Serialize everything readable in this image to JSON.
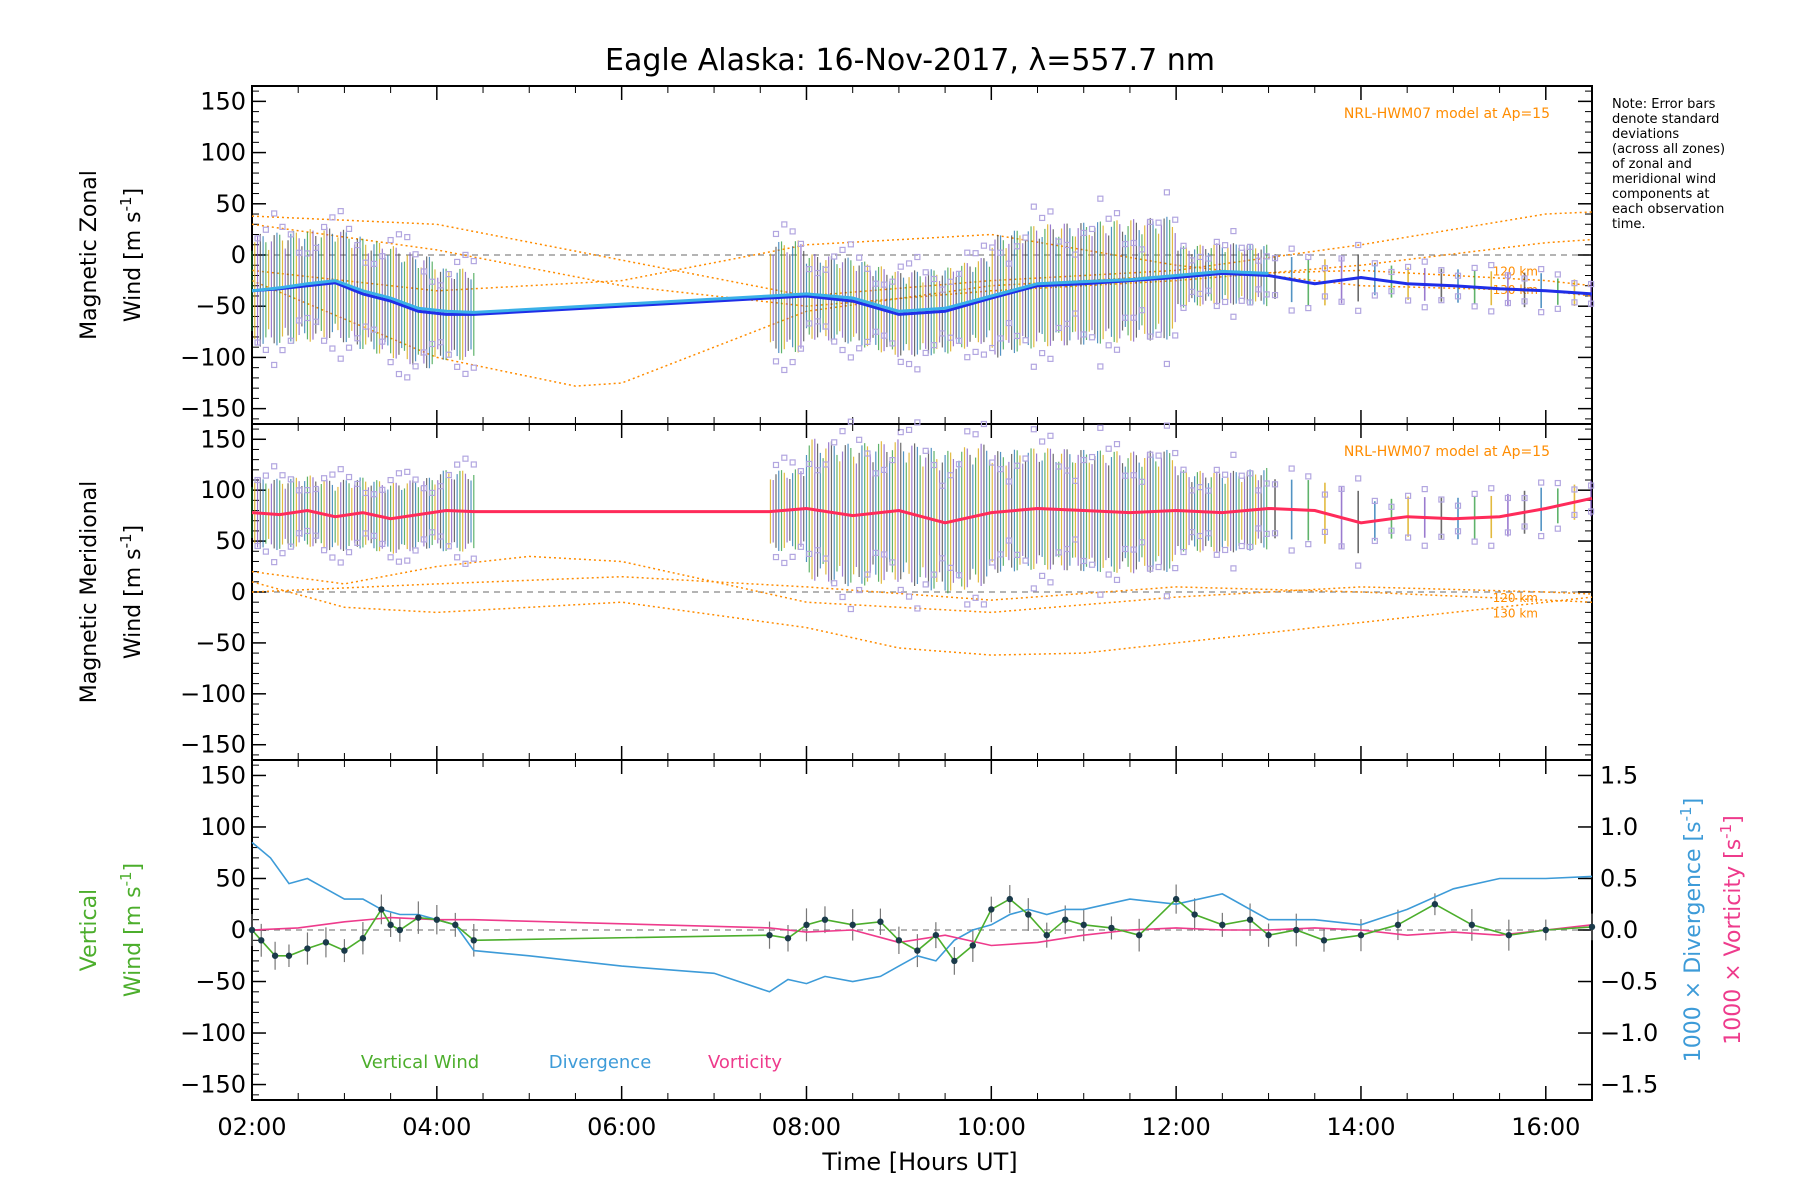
{
  "chart_data": {
    "type": "line",
    "title": "Eagle Alaska: 16-Nov-2017, λ=557.7 nm",
    "xlabel": "Time [Hours UT]",
    "x_ticks": [
      "02:00",
      "04:00",
      "06:00",
      "08:00",
      "10:00",
      "12:00",
      "14:00",
      "16:00"
    ],
    "xlim": [
      2.0,
      16.5
    ],
    "note": [
      "Note: Error bars",
      "denote standard",
      "deviations",
      "(across all zones)",
      "of zonal and",
      "meridional wind",
      "components at",
      "each observation",
      "time."
    ],
    "colors": {
      "zonal": "#1f2ee8",
      "zonal_mean": "#3ab0e8",
      "meridional": "#ff2b5a",
      "model": "#ff8c00",
      "zone_points": "#b2a6e0",
      "vertical": "#4cae2c",
      "divergence": "#3d9bd8",
      "vorticity": "#ee3b8c",
      "vertical_points": "#1a3a4a"
    },
    "panels": [
      {
        "id": "zonal",
        "ylabel_line1": "Magnetic Zonal",
        "ylabel_line2": "Wind [m s",
        "ylabel_sup": "-1",
        "ylabel_close": "]",
        "ylim": [
          -165,
          165
        ],
        "y_ticks": [
          150,
          100,
          50,
          0,
          -50,
          -100,
          -150
        ],
        "model_label": "NRL-HWM07 model at Ap=15",
        "model_alt_labels": [
          "120 km",
          "130 km"
        ],
        "series": [
          {
            "name": "",
            "x": [
              2.0,
              2.3,
              2.6,
              2.9,
              3.2,
              3.5,
              3.8,
              4.1,
              4.4,
              7.6,
              8.0,
              8.5,
              9.0,
              9.5,
              10.0,
              10.5,
              11.0,
              11.5,
              12.0,
              12.5,
              13.0,
              13.5,
              14.0,
              14.5,
              15.0,
              15.5,
              16.0,
              16.5
            ],
            "y": [
              -35,
              -33,
              -30,
              -27,
              -38,
              -45,
              -55,
              -58,
              -58,
              -42,
              -40,
              -45,
              -58,
              -55,
              -42,
              -30,
              -28,
              -25,
              -22,
              -18,
              -20,
              -28,
              -22,
              -28,
              -30,
              -33,
              -35,
              -38
            ]
          },
          {
            "name": "",
            "x": [
              2.0,
              2.3,
              2.6,
              2.9,
              3.2,
              3.5,
              3.8,
              4.1,
              4.4,
              7.6,
              8.0,
              8.5,
              9.0,
              9.5,
              10.0,
              10.5,
              11.0,
              11.5,
              12.0,
              12.5,
              13.0
            ],
            "y": [
              -35,
              -32,
              -28,
              -25,
              -35,
              -42,
              -52,
              -55,
              -56,
              -40,
              -38,
              -42,
              -55,
              -52,
              -40,
              -28,
              -26,
              -24,
              -20,
              -16,
              -18
            ]
          }
        ],
        "models": [
          {
            "x": [
              2.0,
              4.0,
              6.0,
              8.0,
              10.0,
              12.0,
              14.0,
              16.0,
              16.5
            ],
            "y": [
              38,
              30,
              -5,
              -40,
              -25,
              -15,
              10,
              40,
              42
            ]
          },
          {
            "x": [
              2.0,
              4.0,
              6.0,
              8.0,
              10.0,
              12.0,
              14.0,
              16.0,
              16.5
            ],
            "y": [
              30,
              5,
              -30,
              -50,
              -35,
              -25,
              -10,
              12,
              15
            ]
          },
          {
            "x": [
              2.0,
              4.0,
              5.5,
              6.0,
              8.0,
              10.0,
              12.0,
              14.0,
              16.0,
              16.5
            ],
            "y": [
              -25,
              -100,
              -128,
              -125,
              -55,
              -30,
              -20,
              -15,
              -25,
              -30
            ]
          },
          {
            "x": [
              2.0,
              4.0,
              6.0,
              8.0,
              10.0,
              12.0,
              14.0,
              16.0,
              16.5
            ],
            "y": [
              -15,
              -35,
              -25,
              10,
              20,
              -10,
              -30,
              -35,
              -40
            ]
          }
        ],
        "errorbar_halfwidth": [
          55,
          45,
          55,
          42,
          60,
          30,
          20,
          15
        ]
      },
      {
        "id": "meridional",
        "ylabel_line1": "Magnetic Meridional",
        "ylabel_line2": "Wind [m s",
        "ylabel_sup": "-1",
        "ylabel_close": "]",
        "ylim": [
          -165,
          165
        ],
        "y_ticks": [
          150,
          100,
          50,
          0,
          -50,
          -100,
          -150
        ],
        "model_label": "NRL-HWM07 model at Ap=15",
        "model_alt_labels": [
          "120 km",
          "130 km"
        ],
        "series": [
          {
            "name": "",
            "x": [
              2.0,
              2.3,
              2.6,
              2.9,
              3.2,
              3.5,
              3.8,
              4.1,
              4.4,
              7.6,
              8.0,
              8.5,
              9.0,
              9.5,
              10.0,
              10.5,
              11.0,
              11.5,
              12.0,
              12.5,
              13.0,
              13.5,
              14.0,
              14.5,
              15.0,
              15.5,
              16.0,
              16.5
            ],
            "y": [
              78,
              76,
              80,
              74,
              78,
              72,
              76,
              80,
              79,
              79,
              82,
              75,
              80,
              68,
              78,
              82,
              80,
              78,
              80,
              78,
              82,
              80,
              68,
              74,
              72,
              74,
              82,
              92
            ]
          }
        ],
        "models": [
          {
            "x": [
              2.0,
              3.0,
              4.0,
              5.0,
              6.0,
              7.0,
              8.0,
              10.0,
              12.0,
              14.0,
              16.0,
              16.5
            ],
            "y": [
              20,
              8,
              25,
              35,
              30,
              10,
              -10,
              -20,
              -5,
              5,
              0,
              -2
            ]
          },
          {
            "x": [
              2.0,
              3.0,
              4.0,
              6.0,
              8.0,
              9.0,
              10.0,
              11.0,
              12.0,
              14.0,
              16.0,
              16.5
            ],
            "y": [
              10,
              -15,
              -20,
              -10,
              -35,
              -55,
              -62,
              -60,
              -50,
              -30,
              -10,
              -5
            ]
          },
          {
            "x": [
              2.0,
              4.0,
              6.0,
              8.0,
              10.0,
              12.0,
              14.0,
              16.0,
              16.5
            ],
            "y": [
              0,
              8,
              15,
              5,
              -8,
              5,
              0,
              -8,
              -10
            ]
          }
        ],
        "errorbar_halfwidth": [
          35,
          40,
          40,
          70,
          60,
          40,
          25,
          20
        ]
      },
      {
        "id": "vertical",
        "ylabel_line1": "Vertical",
        "ylabel_line2": "Wind [m s",
        "ylabel_sup": "-1",
        "ylabel_close": "]",
        "ylim": [
          -165,
          165
        ],
        "y_ticks": [
          150,
          100,
          50,
          0,
          -50,
          -100,
          -150
        ],
        "y2_ticks": [
          "1.5",
          "1.0",
          "0.5",
          "0.0",
          "−0.5",
          "−1.0",
          "−1.5"
        ],
        "y2_values": [
          1.5,
          1.0,
          0.5,
          0.0,
          -0.5,
          -1.0,
          -1.5
        ],
        "y2lim": [
          -1.65,
          1.65
        ],
        "y2_label_div": "1000 × Divergence [s",
        "y2_label_vort": "1000 × Vorticity [s",
        "y2_sup": "-1",
        "y2_close": "]",
        "legend": [
          "Vertical Wind",
          "Divergence",
          "Vorticity"
        ],
        "series": [
          {
            "name": "Vertical Wind",
            "x": [
              2.0,
              2.1,
              2.25,
              2.4,
              2.6,
              2.8,
              3.0,
              3.2,
              3.4,
              3.5,
              3.6,
              3.8,
              4.0,
              4.2,
              4.4,
              7.6,
              7.8,
              8.0,
              8.2,
              8.5,
              8.8,
              9.0,
              9.2,
              9.4,
              9.6,
              9.8,
              10.0,
              10.2,
              10.4,
              10.6,
              10.8,
              11.0,
              11.3,
              11.6,
              12.0,
              12.2,
              12.5,
              12.8,
              13.0,
              13.3,
              13.6,
              14.0,
              14.4,
              14.8,
              15.2,
              15.6,
              16.0,
              16.5
            ],
            "y": [
              0,
              -10,
              -25,
              -25,
              -18,
              -12,
              -20,
              -8,
              20,
              5,
              0,
              12,
              10,
              5,
              -10,
              -5,
              -8,
              5,
              10,
              5,
              8,
              -10,
              -20,
              -5,
              -30,
              -15,
              20,
              30,
              15,
              -5,
              10,
              5,
              2,
              -5,
              30,
              15,
              5,
              10,
              -5,
              0,
              -10,
              -5,
              5,
              25,
              5,
              -5,
              0,
              3
            ]
          },
          {
            "name": "Divergence",
            "x": [
              2.0,
              2.2,
              2.4,
              2.6,
              2.8,
              3.0,
              3.2,
              3.4,
              3.6,
              3.8,
              4.0,
              4.2,
              4.4,
              5.0,
              6.0,
              7.0,
              7.6,
              7.8,
              8.0,
              8.2,
              8.5,
              8.8,
              9.0,
              9.2,
              9.4,
              9.6,
              9.8,
              10.0,
              10.2,
              10.4,
              10.6,
              10.8,
              11.0,
              11.5,
              12.0,
              12.5,
              13.0,
              13.5,
              14.0,
              14.5,
              15.0,
              15.5,
              16.0,
              16.5
            ],
            "y": [
              0.85,
              0.7,
              0.45,
              0.5,
              0.4,
              0.3,
              0.3,
              0.2,
              0.15,
              0.15,
              0.1,
              0.05,
              -0.2,
              -0.25,
              -0.35,
              -0.42,
              -0.6,
              -0.48,
              -0.52,
              -0.45,
              -0.5,
              -0.45,
              -0.35,
              -0.25,
              -0.3,
              -0.1,
              0.0,
              0.05,
              0.15,
              0.2,
              0.15,
              0.2,
              0.2,
              0.3,
              0.25,
              0.35,
              0.1,
              0.1,
              0.05,
              0.2,
              0.4,
              0.5,
              0.5,
              0.52
            ]
          },
          {
            "name": "Vorticity",
            "x": [
              2.0,
              2.5,
              3.0,
              3.5,
              4.0,
              4.4,
              7.6,
              8.0,
              8.5,
              9.0,
              9.5,
              10.0,
              10.5,
              11.0,
              11.5,
              12.0,
              12.5,
              13.0,
              13.5,
              14.0,
              14.5,
              15.0,
              15.5,
              16.0,
              16.5
            ],
            "y": [
              0.0,
              0.02,
              0.08,
              0.12,
              0.1,
              0.1,
              0.02,
              -0.02,
              0.0,
              -0.12,
              -0.05,
              -0.15,
              -0.12,
              -0.05,
              0.0,
              0.02,
              0.0,
              0.0,
              0.02,
              0.0,
              -0.05,
              -0.02,
              -0.05,
              0.0,
              0.05
            ]
          }
        ]
      }
    ]
  }
}
